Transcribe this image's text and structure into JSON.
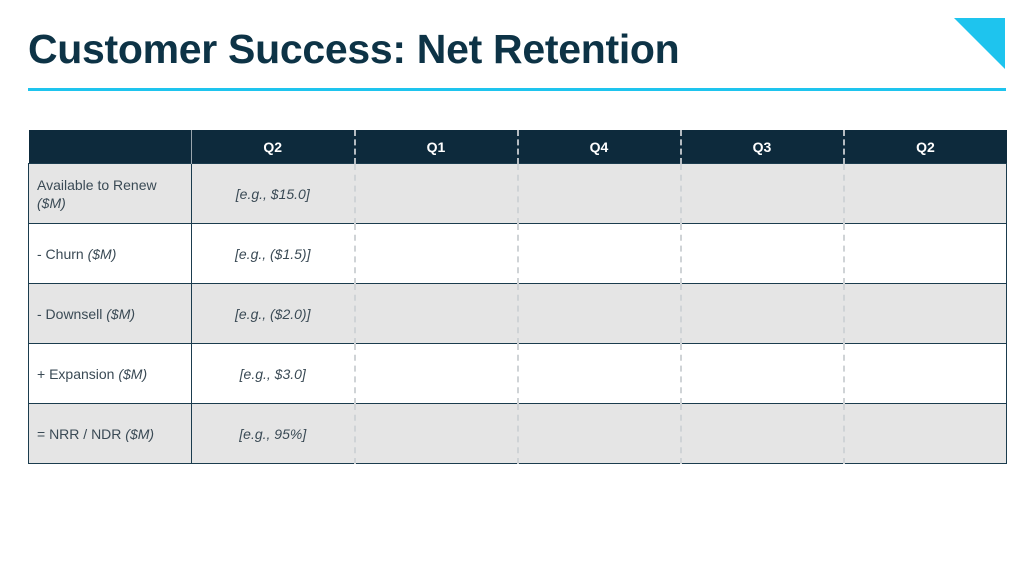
{
  "slide": {
    "title": "Customer Success: Net Retention",
    "accent_color": "#1ec4ee",
    "header_color": "#0d2a3c"
  },
  "table": {
    "columns": [
      "Q2",
      "Q1",
      "Q4",
      "Q3",
      "Q2"
    ],
    "rows": [
      {
        "label": "Available to Renew",
        "unit": "($M)",
        "example": "[e.g., $15.0]"
      },
      {
        "label": "- Churn",
        "unit": "($M)",
        "example": "[e.g., ($1.5)]"
      },
      {
        "label": "- Downsell",
        "unit": "($M)",
        "example": "[e.g., ($2.0)]"
      },
      {
        "label": "+ Expansion",
        "unit": "($M)",
        "example": "[e.g., $3.0]"
      },
      {
        "label": "= NRR / NDR",
        "unit": "($M)",
        "example": "[e.g., 95%]"
      }
    ]
  }
}
